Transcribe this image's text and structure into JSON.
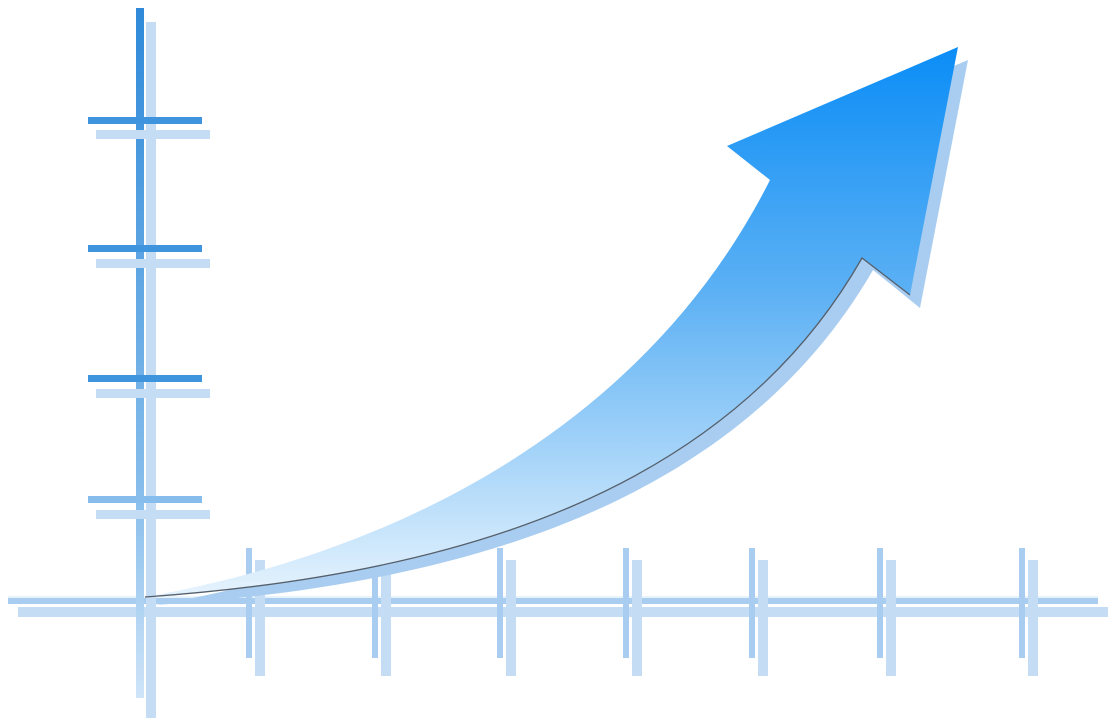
{
  "figure": {
    "subject": "growth-arrow-over-axes",
    "colors": {
      "background": "#ffffff",
      "axis_dark": "#3f95dd",
      "axis_light": "#a9cdf0",
      "axis_shadow": "#c4dcf4",
      "arrow_top": "#0b8df6",
      "arrow_bottom": "#d8ecfb",
      "arrow_shadow": "#9fc7ef",
      "arrow_outline": "#55606c"
    },
    "y_axis_ticks": 4,
    "x_axis_ticks": 8,
    "trend": "increasing"
  }
}
